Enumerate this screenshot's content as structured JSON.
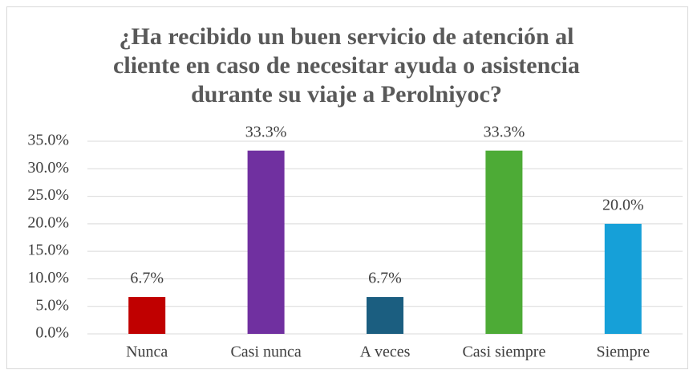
{
  "chart_data": {
    "type": "bar",
    "title": "¿Ha recibido un buen servicio de atención al cliente en caso de necesitar ayuda o asistencia durante su viaje a Perolniyoc?",
    "categories": [
      "Nunca",
      "Casi nunca",
      "A veces",
      "Casi siempre",
      "Siempre"
    ],
    "values": [
      6.7,
      33.3,
      6.7,
      33.3,
      20.0
    ],
    "value_labels": [
      "6.7%",
      "33.3%",
      "6.7%",
      "33.3%",
      "20.0%"
    ],
    "colors": [
      "#c00000",
      "#7030a0",
      "#1b5e80",
      "#4dab36",
      "#16a0d8"
    ],
    "ylim": [
      0,
      35
    ],
    "yticks": [
      {
        "value": 0,
        "label": "0.0%"
      },
      {
        "value": 5,
        "label": "5.0%"
      },
      {
        "value": 10,
        "label": "10.0%"
      },
      {
        "value": 15,
        "label": "15.0%"
      },
      {
        "value": 20,
        "label": "20.0%"
      },
      {
        "value": 25,
        "label": "25.0%"
      },
      {
        "value": 30,
        "label": "30.0%"
      },
      {
        "value": 35,
        "label": "35.0%"
      }
    ],
    "grid": true
  }
}
